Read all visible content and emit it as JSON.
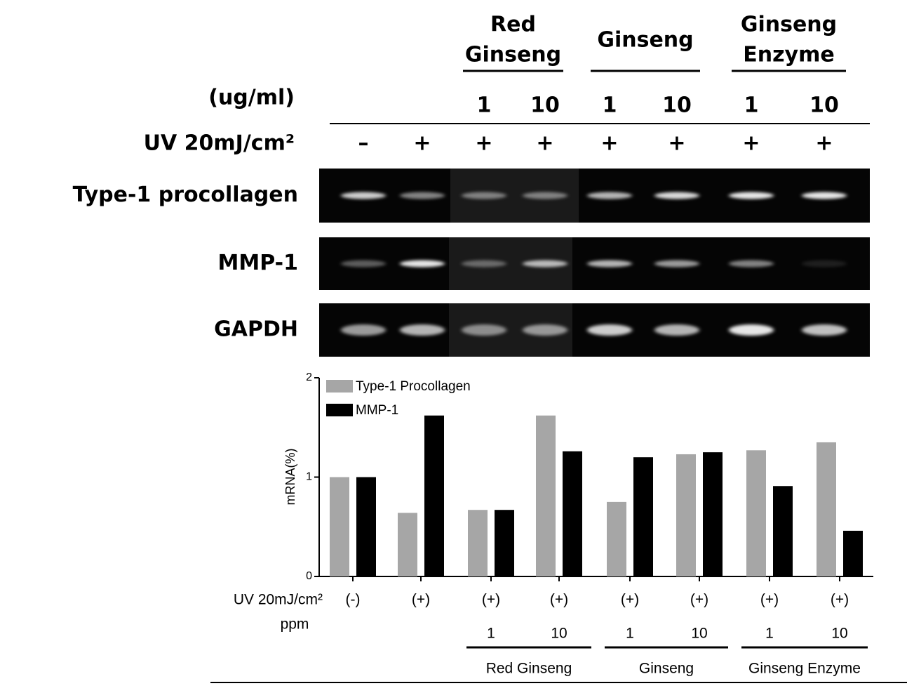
{
  "gel": {
    "groups": [
      [
        "Red",
        "Ginseng"
      ],
      [
        "Ginseng"
      ],
      [
        "Ginseng",
        "Enzyme"
      ]
    ],
    "dose_label": "(ug/ml)",
    "doses": [
      null,
      null,
      "1",
      "10",
      "1",
      "10",
      "1",
      "10"
    ],
    "uv_label": "UV 20mJ/cm²",
    "uv": [
      "–",
      "+",
      "+",
      "+",
      "+",
      "+",
      "+",
      "+"
    ],
    "rows": [
      "Type-1 procollagen",
      "MMP-1",
      "GAPDH"
    ]
  },
  "chart_data": {
    "type": "bar",
    "ylabel": "mRNA(%)",
    "category_label": "UV 20mJ/cm²",
    "categories": [
      "(-)",
      "(+)",
      "(+)",
      "(+)",
      "(+)",
      "(+)",
      "(+)",
      "(+)"
    ],
    "dose_label": "ppm",
    "doses": [
      null,
      null,
      "1",
      "10",
      "1",
      "10",
      "1",
      "10"
    ],
    "groups": [
      "Red Ginseng",
      "Ginseng",
      "Ginseng Enzyme"
    ],
    "series": [
      {
        "name": "Type-1 Procollagen",
        "color": "#a6a6a6",
        "values": [
          1.0,
          0.64,
          0.67,
          1.62,
          0.75,
          1.23,
          1.27,
          1.35
        ]
      },
      {
        "name": "MMP-1",
        "color": "#000000",
        "values": [
          1.0,
          1.62,
          0.67,
          1.26,
          1.2,
          1.25,
          0.91,
          0.46
        ]
      }
    ],
    "ylim": [
      0,
      2
    ],
    "yticks": [
      0,
      1,
      2
    ],
    "legend": "upper left"
  }
}
